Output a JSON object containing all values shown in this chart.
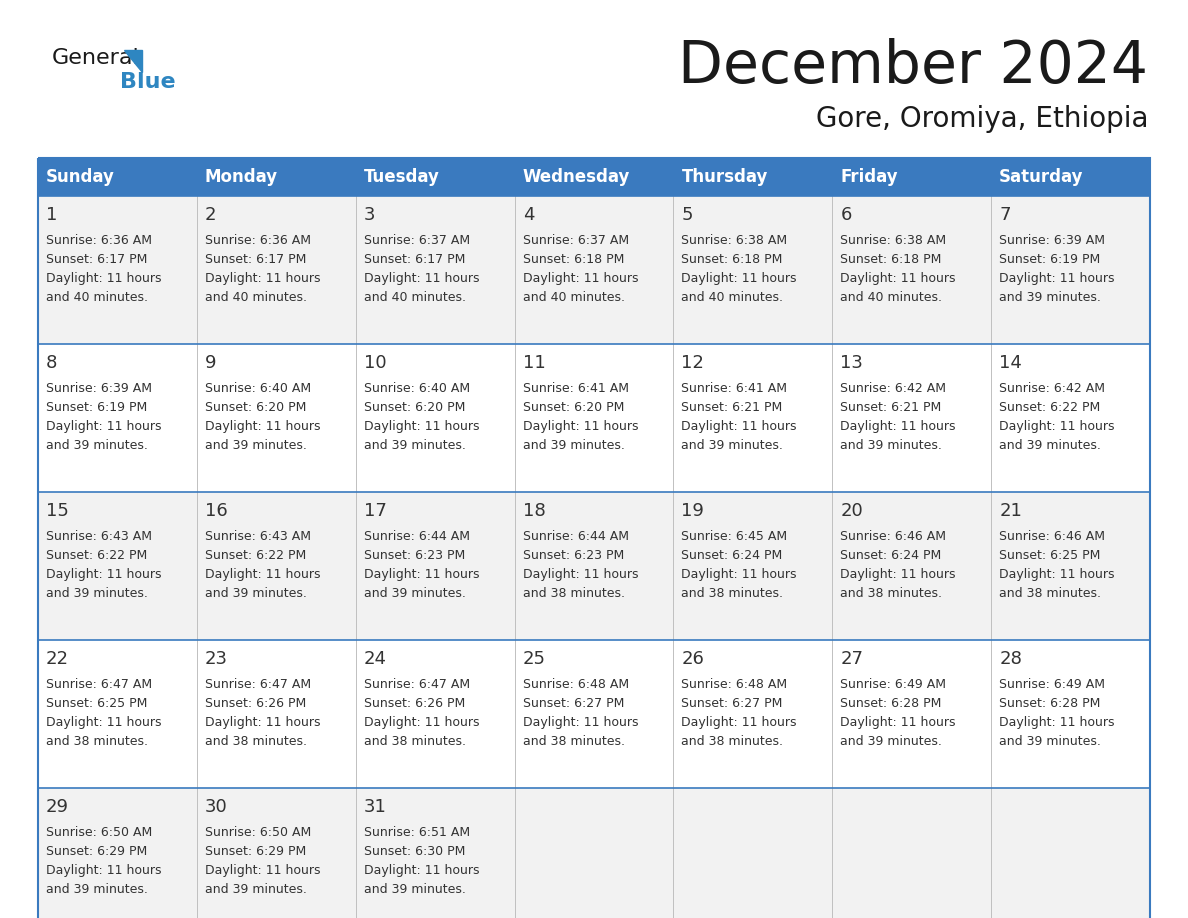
{
  "title": "December 2024",
  "subtitle": "Gore, Oromiya, Ethiopia",
  "days_of_week": [
    "Sunday",
    "Monday",
    "Tuesday",
    "Wednesday",
    "Thursday",
    "Friday",
    "Saturday"
  ],
  "header_bg": "#3a7abf",
  "header_text": "#ffffff",
  "cell_bg_odd": "#f2f2f2",
  "cell_bg_even": "#ffffff",
  "border_color": "#3a7abf",
  "divider_color": "#c0c0c0",
  "text_color": "#333333",
  "title_color": "#1a1a1a",
  "logo_black": "#1a1a1a",
  "logo_blue": "#2e86c1",
  "calendar_data": [
    [
      {
        "day": 1,
        "sunrise": "6:36 AM",
        "sunset": "6:17 PM",
        "daylight": "11 hours and 40 minutes."
      },
      {
        "day": 2,
        "sunrise": "6:36 AM",
        "sunset": "6:17 PM",
        "daylight": "11 hours and 40 minutes."
      },
      {
        "day": 3,
        "sunrise": "6:37 AM",
        "sunset": "6:17 PM",
        "daylight": "11 hours and 40 minutes."
      },
      {
        "day": 4,
        "sunrise": "6:37 AM",
        "sunset": "6:18 PM",
        "daylight": "11 hours and 40 minutes."
      },
      {
        "day": 5,
        "sunrise": "6:38 AM",
        "sunset": "6:18 PM",
        "daylight": "11 hours and 40 minutes."
      },
      {
        "day": 6,
        "sunrise": "6:38 AM",
        "sunset": "6:18 PM",
        "daylight": "11 hours and 40 minutes."
      },
      {
        "day": 7,
        "sunrise": "6:39 AM",
        "sunset": "6:19 PM",
        "daylight": "11 hours and 39 minutes."
      }
    ],
    [
      {
        "day": 8,
        "sunrise": "6:39 AM",
        "sunset": "6:19 PM",
        "daylight": "11 hours and 39 minutes."
      },
      {
        "day": 9,
        "sunrise": "6:40 AM",
        "sunset": "6:20 PM",
        "daylight": "11 hours and 39 minutes."
      },
      {
        "day": 10,
        "sunrise": "6:40 AM",
        "sunset": "6:20 PM",
        "daylight": "11 hours and 39 minutes."
      },
      {
        "day": 11,
        "sunrise": "6:41 AM",
        "sunset": "6:20 PM",
        "daylight": "11 hours and 39 minutes."
      },
      {
        "day": 12,
        "sunrise": "6:41 AM",
        "sunset": "6:21 PM",
        "daylight": "11 hours and 39 minutes."
      },
      {
        "day": 13,
        "sunrise": "6:42 AM",
        "sunset": "6:21 PM",
        "daylight": "11 hours and 39 minutes."
      },
      {
        "day": 14,
        "sunrise": "6:42 AM",
        "sunset": "6:22 PM",
        "daylight": "11 hours and 39 minutes."
      }
    ],
    [
      {
        "day": 15,
        "sunrise": "6:43 AM",
        "sunset": "6:22 PM",
        "daylight": "11 hours and 39 minutes."
      },
      {
        "day": 16,
        "sunrise": "6:43 AM",
        "sunset": "6:22 PM",
        "daylight": "11 hours and 39 minutes."
      },
      {
        "day": 17,
        "sunrise": "6:44 AM",
        "sunset": "6:23 PM",
        "daylight": "11 hours and 39 minutes."
      },
      {
        "day": 18,
        "sunrise": "6:44 AM",
        "sunset": "6:23 PM",
        "daylight": "11 hours and 38 minutes."
      },
      {
        "day": 19,
        "sunrise": "6:45 AM",
        "sunset": "6:24 PM",
        "daylight": "11 hours and 38 minutes."
      },
      {
        "day": 20,
        "sunrise": "6:46 AM",
        "sunset": "6:24 PM",
        "daylight": "11 hours and 38 minutes."
      },
      {
        "day": 21,
        "sunrise": "6:46 AM",
        "sunset": "6:25 PM",
        "daylight": "11 hours and 38 minutes."
      }
    ],
    [
      {
        "day": 22,
        "sunrise": "6:47 AM",
        "sunset": "6:25 PM",
        "daylight": "11 hours and 38 minutes."
      },
      {
        "day": 23,
        "sunrise": "6:47 AM",
        "sunset": "6:26 PM",
        "daylight": "11 hours and 38 minutes."
      },
      {
        "day": 24,
        "sunrise": "6:47 AM",
        "sunset": "6:26 PM",
        "daylight": "11 hours and 38 minutes."
      },
      {
        "day": 25,
        "sunrise": "6:48 AM",
        "sunset": "6:27 PM",
        "daylight": "11 hours and 38 minutes."
      },
      {
        "day": 26,
        "sunrise": "6:48 AM",
        "sunset": "6:27 PM",
        "daylight": "11 hours and 38 minutes."
      },
      {
        "day": 27,
        "sunrise": "6:49 AM",
        "sunset": "6:28 PM",
        "daylight": "11 hours and 39 minutes."
      },
      {
        "day": 28,
        "sunrise": "6:49 AM",
        "sunset": "6:28 PM",
        "daylight": "11 hours and 39 minutes."
      }
    ],
    [
      {
        "day": 29,
        "sunrise": "6:50 AM",
        "sunset": "6:29 PM",
        "daylight": "11 hours and 39 minutes."
      },
      {
        "day": 30,
        "sunrise": "6:50 AM",
        "sunset": "6:29 PM",
        "daylight": "11 hours and 39 minutes."
      },
      {
        "day": 31,
        "sunrise": "6:51 AM",
        "sunset": "6:30 PM",
        "daylight": "11 hours and 39 minutes."
      },
      null,
      null,
      null,
      null
    ]
  ]
}
